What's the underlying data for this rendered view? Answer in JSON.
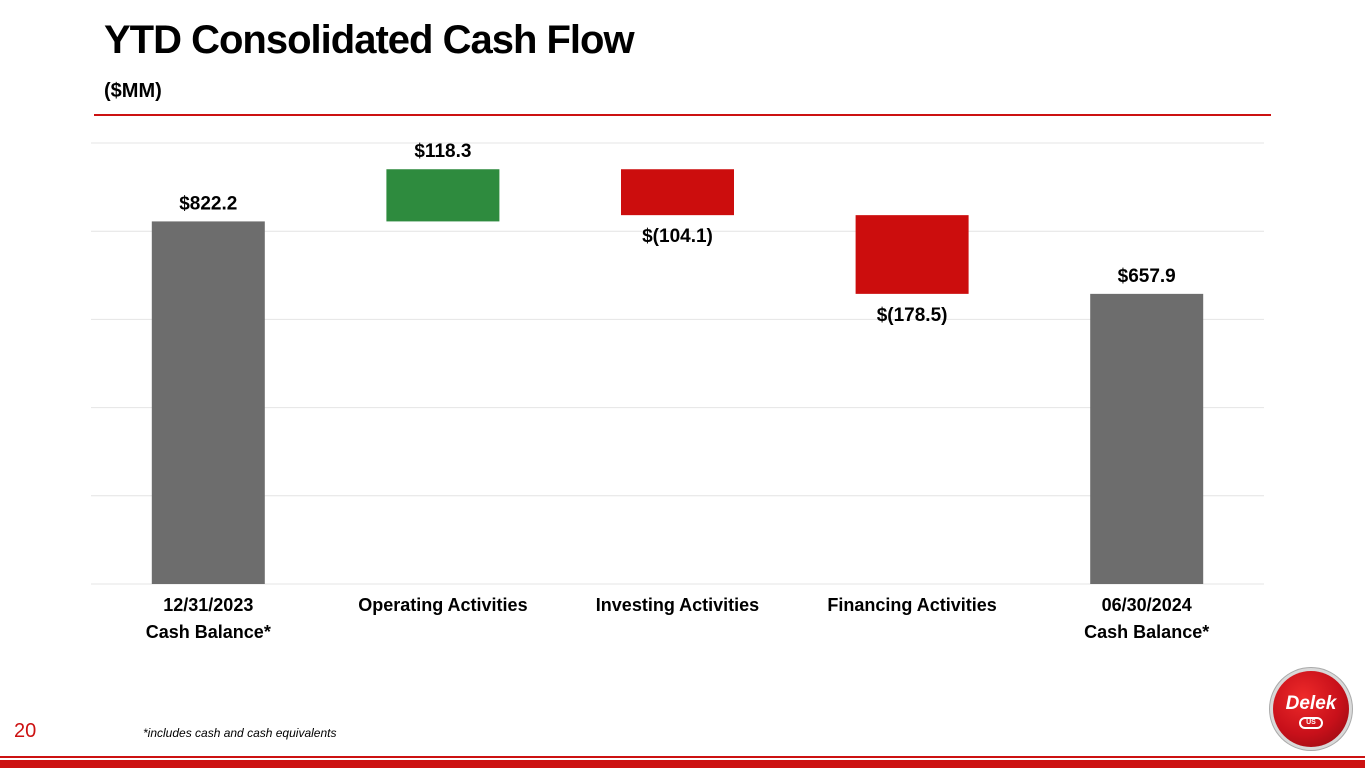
{
  "header": {
    "title": "YTD Consolidated Cash Flow",
    "subtitle": "($MM)"
  },
  "colors": {
    "accent_red": "#cc1111",
    "balance_gray": "#6d6d6d",
    "increase_green": "#2e8b3e",
    "decrease_red": "#cc0d0d",
    "grid": "#e4e4e4"
  },
  "chart_data": {
    "type": "bar",
    "subtype": "waterfall",
    "title": "YTD Consolidated Cash Flow",
    "subtitle": "($MM)",
    "categories": [
      "12/31/2023\nCash Balance*",
      "Operating Activities",
      "Investing Activities",
      "Financing Activities",
      "06/30/2024\nCash Balance*"
    ],
    "values": [
      822.2,
      118.3,
      -104.1,
      -178.5,
      657.9
    ],
    "kinds": [
      "total",
      "delta",
      "delta",
      "delta",
      "total"
    ],
    "data_labels": [
      "$822.2",
      "$118.3",
      "$(104.1)",
      "$(178.5)",
      "$657.9"
    ],
    "ylim": [
      0,
      1000
    ],
    "grid": true,
    "legend": "none",
    "xlabel": "",
    "ylabel": ""
  },
  "footer": {
    "page_number": "20",
    "footnote": "*includes cash and cash equivalents",
    "logo": {
      "text": "Delek",
      "sub": "US"
    }
  }
}
